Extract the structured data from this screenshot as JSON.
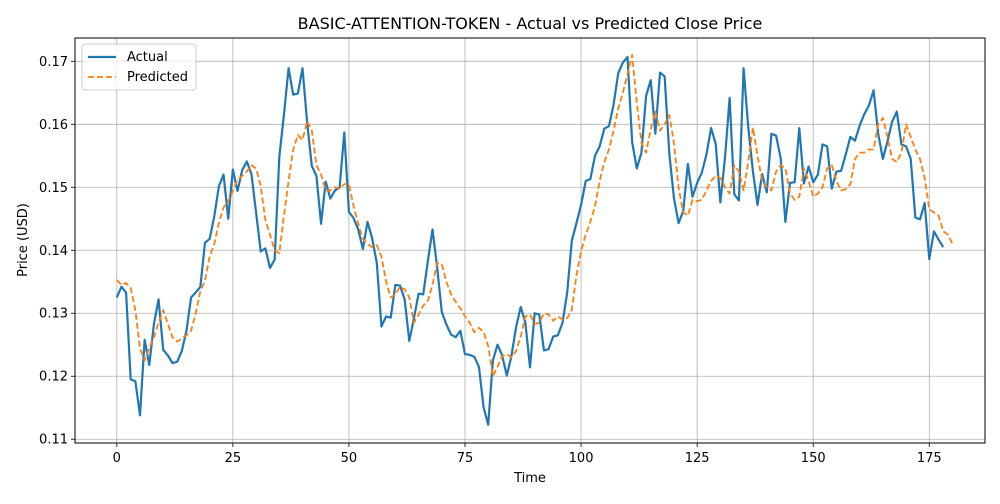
{
  "chart_data": {
    "type": "line",
    "title": "BASIC-ATTENTION-TOKEN - Actual vs Predicted Close Price",
    "xlabel": "Time",
    "ylabel": "Price (USD)",
    "xlim": [
      -9,
      187
    ],
    "ylim": [
      0.1094,
      0.1737
    ],
    "xticks": [
      0,
      25,
      50,
      75,
      100,
      125,
      150,
      175
    ],
    "yticks": [
      0.11,
      0.12,
      0.13,
      0.14,
      0.15,
      0.16,
      0.17
    ],
    "ytick_labels": [
      "0.11",
      "0.12",
      "0.13",
      "0.14",
      "0.15",
      "0.16",
      "0.17"
    ],
    "grid": true,
    "legend_position": "top-left",
    "series": [
      {
        "name": "Actual",
        "color": "#1f77b4",
        "style": "solid",
        "values": [
          0.1325,
          0.1342,
          0.1333,
          0.1195,
          0.1192,
          0.1138,
          0.1258,
          0.1218,
          0.1283,
          0.1322,
          0.1242,
          0.1233,
          0.1221,
          0.1223,
          0.124,
          0.1272,
          0.1325,
          0.1333,
          0.1342,
          0.1412,
          0.1418,
          0.1454,
          0.1502,
          0.152,
          0.145,
          0.1528,
          0.1494,
          0.1527,
          0.1541,
          0.1521,
          0.146,
          0.1398,
          0.1403,
          0.1372,
          0.1385,
          0.1548,
          0.1615,
          0.1689,
          0.1647,
          0.1649,
          0.1689,
          0.1603,
          0.1534,
          0.1518,
          0.1442,
          0.1509,
          0.1482,
          0.1495,
          0.15,
          0.1587,
          0.1461,
          0.1451,
          0.1433,
          0.1402,
          0.1445,
          0.1419,
          0.138,
          0.1279,
          0.1295,
          0.1293,
          0.1345,
          0.1344,
          0.1322,
          0.1256,
          0.1292,
          0.1331,
          0.133,
          0.1383,
          0.1433,
          0.1373,
          0.1302,
          0.1282,
          0.1266,
          0.1262,
          0.1272,
          0.1235,
          0.1234,
          0.1231,
          0.1215,
          0.1151,
          0.1123,
          0.1225,
          0.125,
          0.1233,
          0.1201,
          0.1232,
          0.1278,
          0.131,
          0.1285,
          0.1214,
          0.13,
          0.1298,
          0.1241,
          0.1243,
          0.1263,
          0.1265,
          0.1285,
          0.1332,
          0.1415,
          0.1443,
          0.1472,
          0.151,
          0.1513,
          0.155,
          0.1565,
          0.1593,
          0.1597,
          0.1631,
          0.1681,
          0.1698,
          0.1707,
          0.1572,
          0.153,
          0.1555,
          0.1645,
          0.167,
          0.1585,
          0.1682,
          0.1676,
          0.1554,
          0.1483,
          0.1443,
          0.1462,
          0.1537,
          0.1485,
          0.1507,
          0.1523,
          0.1552,
          0.1594,
          0.1569,
          0.1476,
          0.1547,
          0.1642,
          0.1489,
          0.1479,
          0.1689,
          0.1596,
          0.1526,
          0.1472,
          0.1521,
          0.1492,
          0.1585,
          0.1582,
          0.1546,
          0.1445,
          0.1507,
          0.1508,
          0.1594,
          0.1506,
          0.1533,
          0.1508,
          0.152,
          0.1568,
          0.1565,
          0.1498,
          0.1525,
          0.1526,
          0.1552,
          0.158,
          0.1574,
          0.1598,
          0.1616,
          0.163,
          0.1654,
          0.1585,
          0.1545,
          0.1573,
          0.1604,
          0.162,
          0.1568,
          0.1565,
          0.1545,
          0.1452,
          0.1449,
          0.1475,
          0.1386,
          0.143,
          0.1417,
          0.1405
        ]
      },
      {
        "name": "Predicted",
        "color": "#ff7f0e",
        "style": "dashed",
        "values": [
          0.1353,
          0.1345,
          0.1348,
          0.134,
          0.1305,
          0.1244,
          0.1225,
          0.1245,
          0.1262,
          0.1285,
          0.1305,
          0.1283,
          0.1262,
          0.1255,
          0.126,
          0.1265,
          0.1272,
          0.13,
          0.1335,
          0.1352,
          0.139,
          0.141,
          0.1444,
          0.1468,
          0.1478,
          0.1494,
          0.1512,
          0.1518,
          0.1525,
          0.1535,
          0.153,
          0.1502,
          0.1448,
          0.1425,
          0.14,
          0.1395,
          0.1455,
          0.151,
          0.156,
          0.1583,
          0.1575,
          0.1605,
          0.159,
          0.1535,
          0.152,
          0.1495,
          0.1495,
          0.15,
          0.1498,
          0.1505,
          0.1505,
          0.147,
          0.1442,
          0.1418,
          0.141,
          0.1405,
          0.1408,
          0.139,
          0.135,
          0.1325,
          0.133,
          0.1342,
          0.1338,
          0.1325,
          0.1285,
          0.1298,
          0.1312,
          0.132,
          0.1345,
          0.138,
          0.1378,
          0.135,
          0.133,
          0.1318,
          0.1308,
          0.1295,
          0.1285,
          0.127,
          0.1277,
          0.127,
          0.1248,
          0.12,
          0.1215,
          0.1232,
          0.1235,
          0.123,
          0.124,
          0.1263,
          0.1295,
          0.1298,
          0.1283,
          0.1285,
          0.13,
          0.1298,
          0.1288,
          0.1295,
          0.129,
          0.1292,
          0.1305,
          0.136,
          0.1398,
          0.1425,
          0.1445,
          0.147,
          0.151,
          0.154,
          0.156,
          0.159,
          0.1625,
          0.165,
          0.168,
          0.171,
          0.1635,
          0.157,
          0.1555,
          0.1592,
          0.162,
          0.159,
          0.16,
          0.1615,
          0.157,
          0.15,
          0.146,
          0.1455,
          0.148,
          0.1478,
          0.148,
          0.1495,
          0.151,
          0.1518,
          0.1515,
          0.15,
          0.149,
          0.1535,
          0.1525,
          0.1495,
          0.154,
          0.1595,
          0.155,
          0.151,
          0.15,
          0.1495,
          0.1525,
          0.1535,
          0.153,
          0.149,
          0.148,
          0.1485,
          0.153,
          0.151,
          0.1485,
          0.149,
          0.15,
          0.153,
          0.1535,
          0.151,
          0.1495,
          0.1497,
          0.1505,
          0.1545,
          0.1555,
          0.1555,
          0.156,
          0.156,
          0.16,
          0.161,
          0.158,
          0.1545,
          0.154,
          0.1555,
          0.16,
          0.158,
          0.156,
          0.1545,
          0.1515,
          0.1465,
          0.146,
          0.1455,
          0.143,
          0.1425,
          0.141
        ]
      }
    ]
  }
}
